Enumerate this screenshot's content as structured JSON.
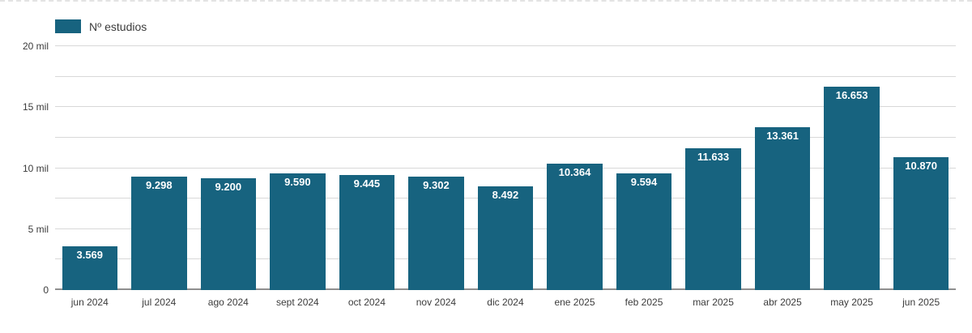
{
  "chart_data": {
    "type": "bar",
    "title": "",
    "legend_position": "top-left",
    "grid": true,
    "grid_step": 2500,
    "ylim": [
      0,
      20000
    ],
    "categories": [
      "jun 2024",
      "jul 2024",
      "ago 2024",
      "sept 2024",
      "oct 2024",
      "nov 2024",
      "dic 2024",
      "ene 2025",
      "feb 2025",
      "mar 2025",
      "abr 2025",
      "may 2025",
      "jun 2025"
    ],
    "series": [
      {
        "name": "Nº estudios",
        "values": [
          3569,
          9298,
          9200,
          9590,
          9445,
          9302,
          8492,
          10364,
          9594,
          11633,
          13361,
          16653,
          10870
        ],
        "labels": [
          "3.569",
          "9.298",
          "9.200",
          "9.590",
          "9.445",
          "9.302",
          "8.492",
          "10.364",
          "9.594",
          "11.633",
          "13.361",
          "16.653",
          "10.870"
        ]
      }
    ],
    "y_ticks": [
      {
        "value": 0,
        "label": "0"
      },
      {
        "value": 5000,
        "label": "5 mil"
      },
      {
        "value": 10000,
        "label": "10 mil"
      },
      {
        "value": 15000,
        "label": "15 mil"
      },
      {
        "value": 20000,
        "label": "20 mil"
      }
    ],
    "colors": {
      "bar": "#17637F",
      "value_label": "#FFFFFF",
      "gridline": "#D8D8D8",
      "baseline": "#8F8F8F",
      "axis_text": "#3B3B3B",
      "background": "#FFFFFF",
      "top_border": "#E3E3E3"
    }
  }
}
